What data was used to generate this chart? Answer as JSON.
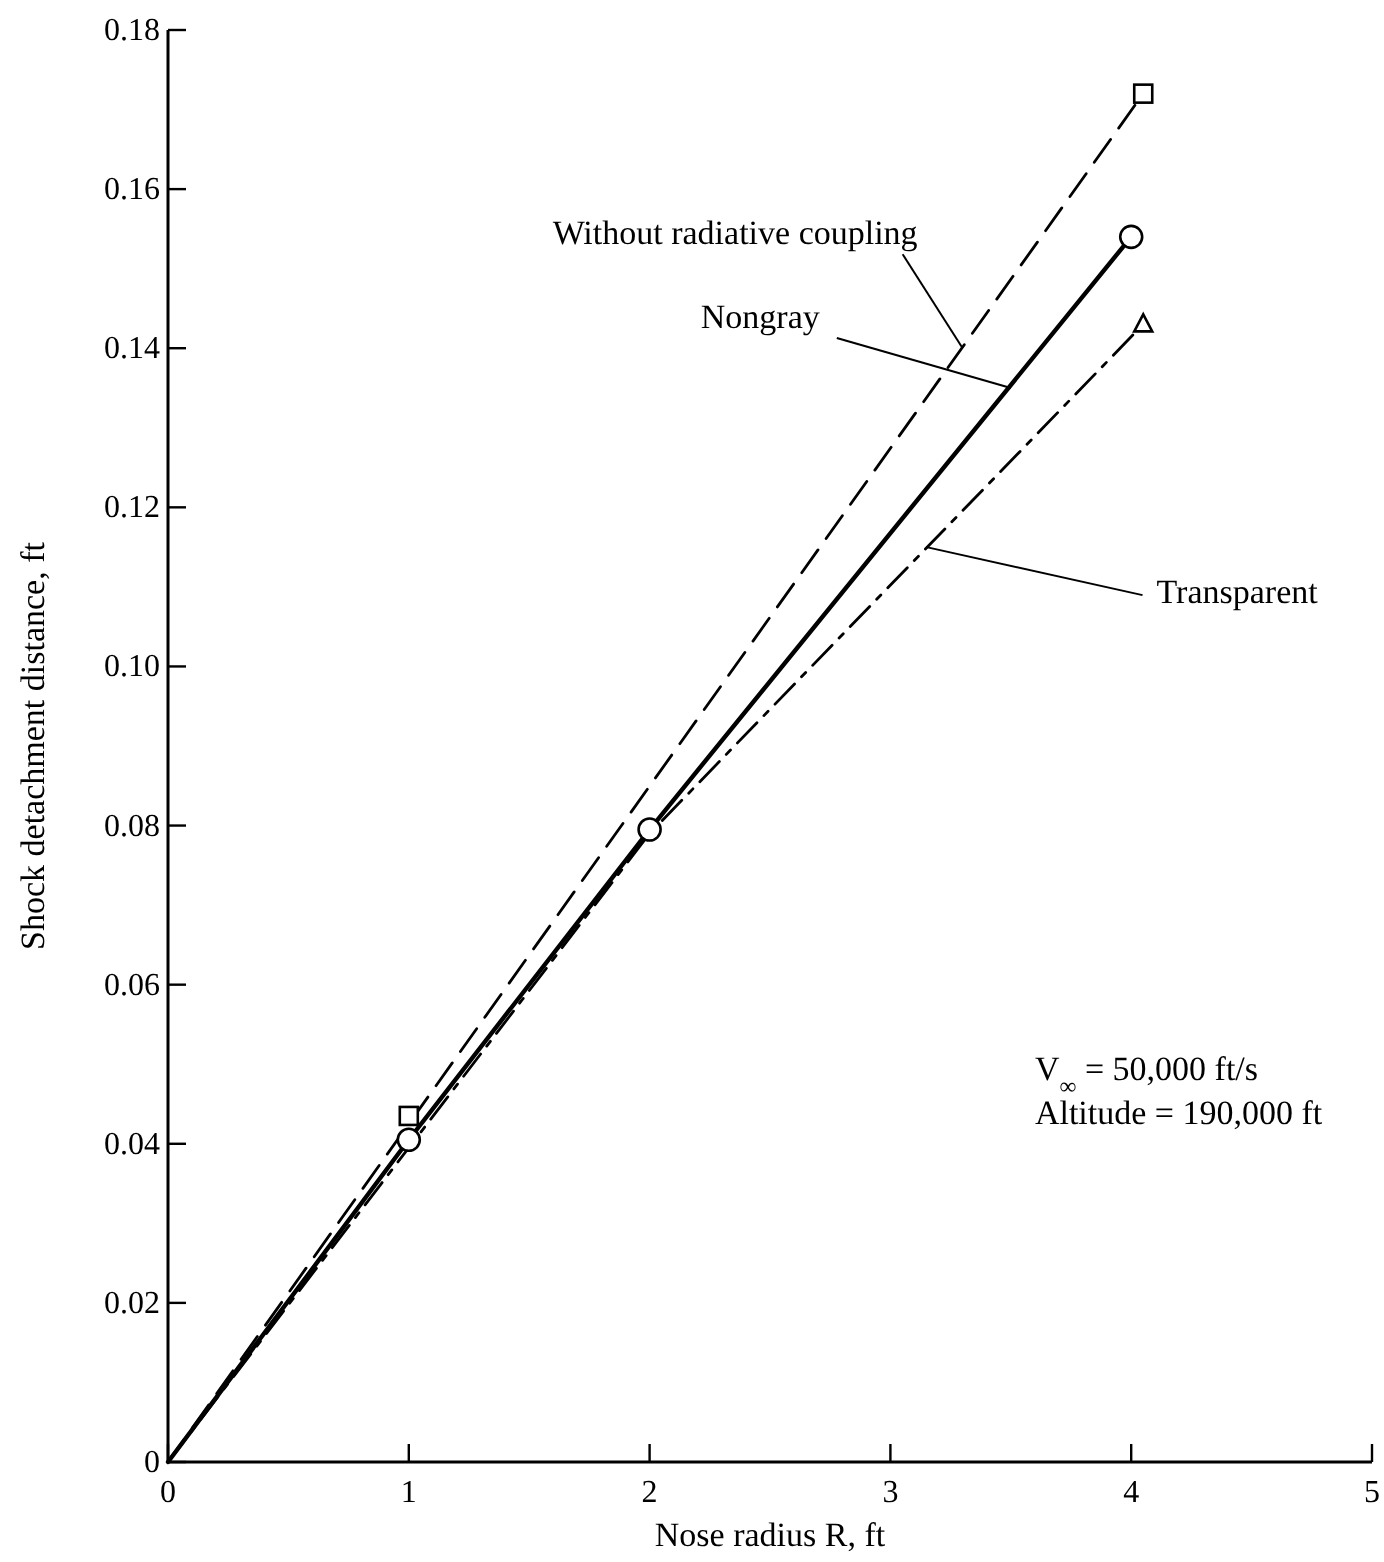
{
  "chart_data": {
    "type": "line",
    "xlabel": "Nose radius R, ft",
    "ylabel": "Shock detachment distance, ft",
    "xlim": [
      0,
      5
    ],
    "xticks": [
      0,
      1,
      2,
      3,
      4,
      5
    ],
    "ylim": [
      0,
      0.18
    ],
    "yticks": [
      0,
      0.02,
      0.04,
      0.06,
      0.08,
      {
        "value": 0.1,
        "label": "0.10"
      },
      0.12,
      0.14,
      0.16,
      0.18
    ],
    "grid": false,
    "series": [
      {
        "line_style": "dashed",
        "color": "#000000",
        "x": [
          0,
          1,
          4.05
        ],
        "values": [
          0,
          0.0425,
          0.172
        ]
      },
      {
        "line_style": "solid",
        "color": "#000000",
        "x": [
          0,
          1,
          2,
          4
        ],
        "values": [
          0,
          0.0405,
          0.0795,
          0.154
        ]
      },
      {
        "line_style": "dashdot",
        "color": "#000000",
        "x": [
          0,
          2,
          4.05
        ],
        "values": [
          0,
          0.079,
          0.143
        ]
      },
      {
        "type": "scatter",
        "marker": "square",
        "color": "#000000",
        "x": [
          1,
          4.05
        ],
        "values": [
          0.0435,
          0.172
        ]
      },
      {
        "type": "scatter",
        "marker": "circle",
        "color": "#000000",
        "x": [
          1,
          2,
          4
        ],
        "values": [
          0.0405,
          0.0795,
          0.154
        ]
      },
      {
        "type": "scatter",
        "marker": "triangle",
        "color": "#000000",
        "x": [
          4.05
        ],
        "values": [
          0.143
        ]
      }
    ],
    "annotations": [
      {
        "text": "Without radiative coupling",
        "x": 3.3,
        "y": 0.14
      },
      {
        "text": "Nongray",
        "x": 3.5,
        "y": 0.135
      },
      {
        "text": "Transparent",
        "x": 3.15,
        "y": 0.115
      },
      "V$_{∞}$ = 50,000 ft/s",
      "Altitude = 190,000 ft"
    ]
  }
}
